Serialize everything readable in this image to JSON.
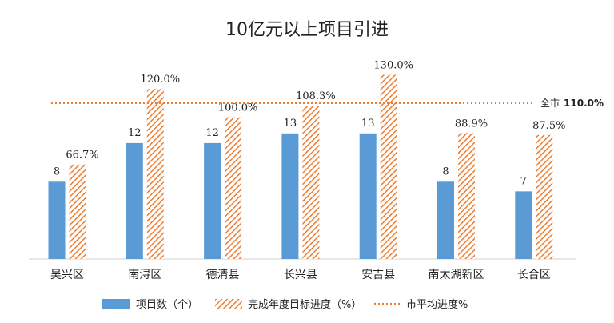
{
  "chart_data": {
    "type": "bar",
    "title": "10亿元以上项目引进",
    "categories": [
      "吴兴区",
      "南浔区",
      "德清县",
      "长兴县",
      "安吉县",
      "南太湖新区",
      "长合区"
    ],
    "series": [
      {
        "name": "项目数（个）",
        "axis": "left",
        "values": [
          8,
          12,
          12,
          13,
          13,
          8,
          7
        ],
        "labels": [
          "8",
          "12",
          "12",
          "13",
          "13",
          "8",
          "7"
        ],
        "color": "#5B9BD5",
        "style": "solid"
      },
      {
        "name": "完成年度目标进度（%）",
        "axis": "right",
        "values": [
          66.7,
          120.0,
          100.0,
          108.3,
          130.0,
          88.9,
          87.5
        ],
        "labels": [
          "66.7%",
          "120.0%",
          "100.0%",
          "108.3%",
          "130.0%",
          "88.9%",
          "87.5%"
        ],
        "color": "#ED7D31",
        "style": "hatched"
      }
    ],
    "reference_line": {
      "name": "市平均进度%",
      "value": 110.0,
      "label_prefix": "全市",
      "label_value": "110.0%",
      "color": "#ED7D31",
      "style": "dotted"
    },
    "ylim_count": [
      0,
      22
    ],
    "ylim_percent": [
      0,
      150
    ],
    "grid": false,
    "legend_position": "bottom"
  }
}
